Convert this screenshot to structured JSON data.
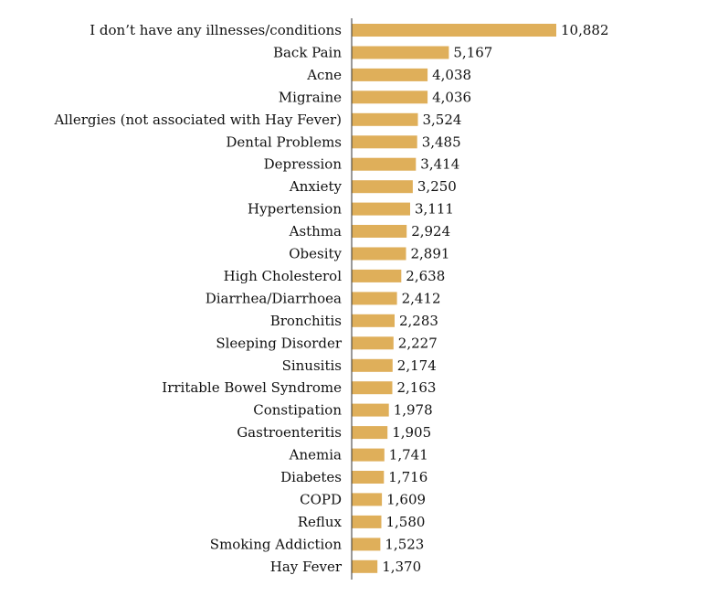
{
  "chart_data": {
    "type": "bar",
    "orientation": "horizontal",
    "title": "",
    "xlabel": "",
    "ylabel": "",
    "xlim": [
      0,
      12000
    ],
    "grid": false,
    "legend": "none",
    "bar_color": "#DFAF5A",
    "axis_color": "#333333",
    "categories": [
      "I don’t have any illnesses/conditions",
      "Back Pain",
      "Acne",
      "Migraine",
      "Allergies (not associated with Hay Fever)",
      "Dental Problems",
      "Depression",
      "Anxiety",
      "Hypertension",
      "Asthma",
      "Obesity",
      "High Cholesterol",
      "Diarrhea/Diarrhoea",
      "Bronchitis",
      "Sleeping Disorder",
      "Sinusitis",
      "Irritable Bowel Syndrome",
      "Constipation",
      "Gastroenteritis",
      "Anemia",
      "Diabetes",
      "COPD",
      "Reflux",
      "Smoking Addiction",
      "Hay Fever"
    ],
    "values": [
      10882,
      5167,
      4038,
      4036,
      3524,
      3485,
      3414,
      3250,
      3111,
      2924,
      2891,
      2638,
      2412,
      2283,
      2227,
      2174,
      2163,
      1978,
      1905,
      1741,
      1716,
      1609,
      1580,
      1523,
      1370
    ],
    "value_labels": [
      "10,882",
      "5,167",
      "4,038",
      "4,036",
      "3,524",
      "3,485",
      "3,414",
      "3,250",
      "3,111",
      "2,924",
      "2,891",
      "2,638",
      "2,412",
      "2,283",
      "2,227",
      "2,174",
      "2,163",
      "1,978",
      "1,905",
      "1,741",
      "1,716",
      "1,609",
      "1,580",
      "1,523",
      "1,370"
    ]
  }
}
